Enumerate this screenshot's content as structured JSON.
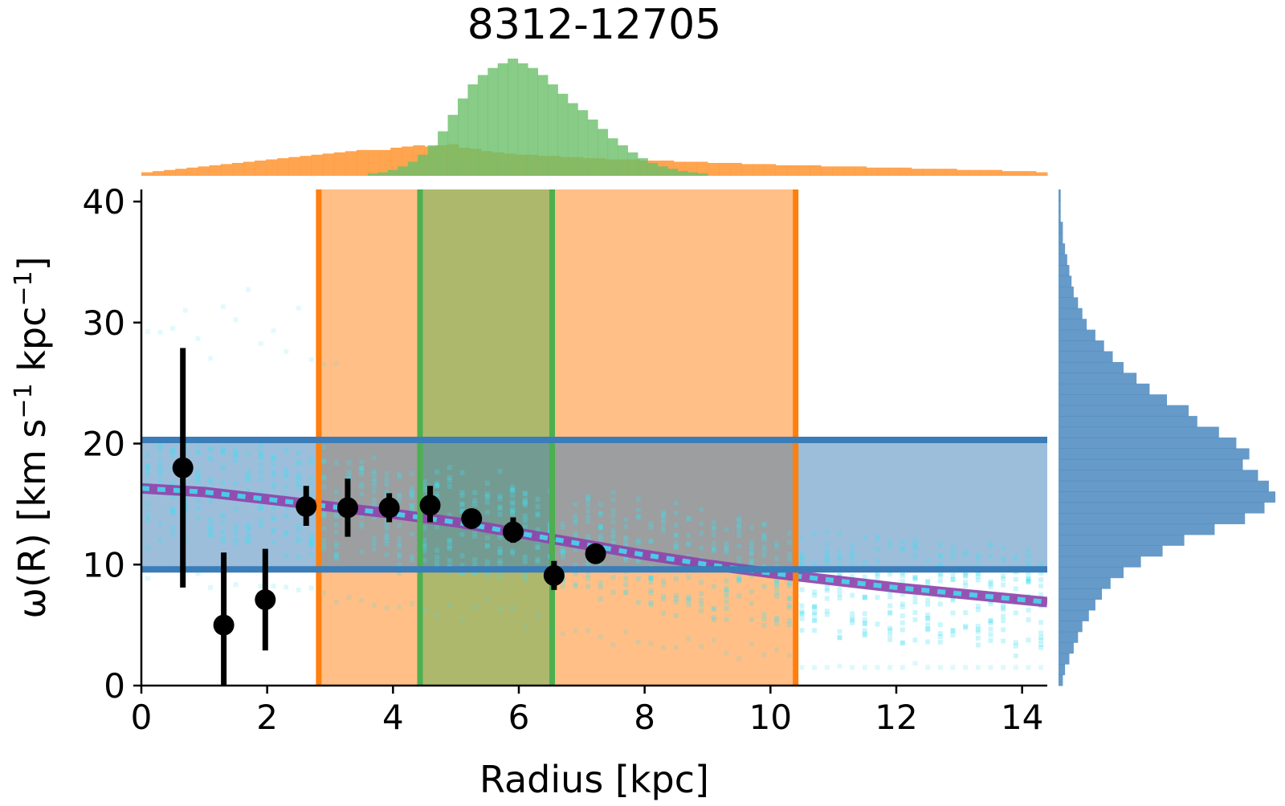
{
  "chart_data": {
    "type": "scatter",
    "title": "8312-12705",
    "xlabel": "Radius [kpc]",
    "ylabel_parts": [
      "ω(R) [km s",
      "−1",
      " kpc",
      "−1",
      "]"
    ],
    "xlim": [
      0,
      14.4
    ],
    "ylim": [
      0,
      41
    ],
    "xticks": [
      0,
      2,
      4,
      6,
      8,
      10,
      12,
      14
    ],
    "yticks": [
      0,
      10,
      20,
      30,
      40
    ],
    "grid": false,
    "legend": "none",
    "colors": {
      "points": "#000000",
      "model_line": "#8e44ad",
      "model_samples": "#40e0f0",
      "horizontal_band": "#3a7db8",
      "outer_band": "#ff7f0e",
      "inner_band": "#4caf50",
      "top_hist_a": "#ff9a3c",
      "top_hist_b": "#6abf69",
      "right_hist": "#4a88c0"
    },
    "points": [
      {
        "x": 0.66,
        "y": 18.0,
        "ylo": 8.1,
        "yhi": 27.9
      },
      {
        "x": 1.31,
        "y": 5.0,
        "ylo": 0.0,
        "yhi": 11.0
      },
      {
        "x": 1.97,
        "y": 7.1,
        "ylo": 2.9,
        "yhi": 11.3
      },
      {
        "x": 2.62,
        "y": 14.8,
        "ylo": 13.2,
        "yhi": 16.5
      },
      {
        "x": 3.28,
        "y": 14.7,
        "ylo": 12.3,
        "yhi": 17.1
      },
      {
        "x": 3.94,
        "y": 14.7,
        "ylo": 13.5,
        "yhi": 15.9
      },
      {
        "x": 4.59,
        "y": 14.9,
        "ylo": 13.5,
        "yhi": 16.5
      },
      {
        "x": 5.25,
        "y": 13.8,
        "ylo": 13.1,
        "yhi": 14.6
      },
      {
        "x": 5.91,
        "y": 12.7,
        "ylo": 11.8,
        "yhi": 13.9
      },
      {
        "x": 6.56,
        "y": 9.1,
        "ylo": 7.9,
        "yhi": 10.3
      },
      {
        "x": 7.22,
        "y": 10.9,
        "ylo": 10.3,
        "yhi": 11.5
      }
    ],
    "model_curve": {
      "x": [
        0,
        1,
        2,
        3,
        4,
        5,
        6,
        7,
        8,
        9,
        10,
        11,
        12,
        13,
        14,
        14.4
      ],
      "y": [
        16.3,
        16.0,
        15.4,
        14.8,
        14.2,
        13.5,
        12.6,
        11.7,
        10.8,
        10.0,
        9.3,
        8.7,
        8.1,
        7.6,
        7.1,
        6.9
      ]
    },
    "horizontal_band": {
      "y_low": 9.6,
      "y_high": 20.3
    },
    "outer_band": {
      "x_low": 2.82,
      "x_high": 10.4
    },
    "inner_band": {
      "x_low": 4.43,
      "x_high": 6.53
    },
    "top_hist_a": {
      "range": [
        0,
        14.4
      ],
      "values": [
        3,
        4,
        5,
        6,
        7,
        8,
        9,
        10,
        11,
        12,
        13,
        14,
        15,
        16,
        17,
        18,
        19,
        20,
        21,
        22,
        22,
        22,
        24,
        25,
        26,
        25,
        26,
        27,
        24,
        23,
        21,
        20,
        19,
        18,
        18,
        17,
        17,
        16,
        16,
        15,
        15,
        14,
        14,
        14,
        13,
        13,
        13,
        12,
        12,
        12,
        11,
        11,
        11,
        10,
        10,
        10,
        9,
        9,
        9,
        9,
        8,
        8,
        8,
        8,
        7,
        7,
        7,
        7,
        6,
        6,
        6,
        6,
        5,
        5,
        5,
        5,
        4,
        4,
        4,
        3
      ]
    },
    "top_hist_b": {
      "range": [
        3.6,
        9.0
      ],
      "values": [
        2,
        3,
        5,
        8,
        12,
        18,
        26,
        38,
        52,
        66,
        78,
        86,
        92,
        96,
        100,
        96,
        92,
        86,
        78,
        70,
        62,
        56,
        48,
        40,
        32,
        26,
        20,
        15,
        11,
        8,
        6,
        4,
        3,
        2
      ]
    },
    "right_hist": {
      "range": [
        0,
        41
      ],
      "values": [
        2,
        3,
        5,
        7,
        9,
        11,
        14,
        17,
        20,
        24,
        30,
        38,
        48,
        58,
        72,
        86,
        95,
        100,
        97,
        92,
        85,
        88,
        82,
        74,
        64,
        60,
        50,
        42,
        36,
        30,
        25,
        21,
        17,
        13,
        11,
        9,
        7,
        6,
        5,
        4,
        3,
        2,
        2,
        1,
        1,
        1
      ]
    }
  }
}
